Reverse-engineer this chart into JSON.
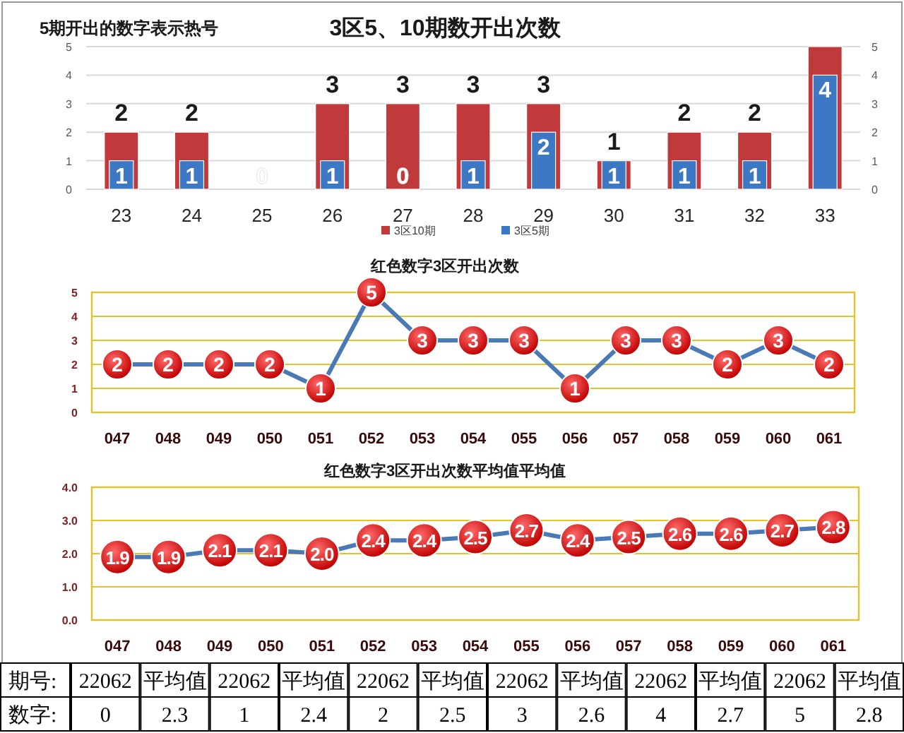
{
  "chart_data": [
    {
      "type": "bar",
      "title": "3区5、10期数开出次数",
      "annotations": [
        "5期开出的数字表示热号"
      ],
      "categories": [
        "23",
        "24",
        "25",
        "26",
        "27",
        "28",
        "29",
        "30",
        "31",
        "32",
        "33"
      ],
      "series": [
        {
          "name": "3区10期",
          "color": "#c0393b",
          "values": [
            2,
            2,
            0,
            3,
            3,
            3,
            3,
            1,
            2,
            2,
            5
          ],
          "value_labels": [
            "2",
            "2",
            null,
            "3",
            "3",
            "3",
            "3",
            "1",
            "2",
            "2",
            null
          ]
        },
        {
          "name": "3区5期",
          "color": "#3c78c3",
          "values": [
            1,
            1,
            0,
            1,
            0,
            1,
            2,
            1,
            1,
            1,
            4
          ],
          "value_labels": [
            "1",
            "1",
            "0",
            "1",
            "0",
            "1",
            "2",
            "1",
            "1",
            "1",
            "4"
          ]
        }
      ],
      "ylim": [
        0,
        5
      ],
      "yticks": [
        0,
        1,
        2,
        3,
        4,
        5
      ],
      "y2lim": [
        0,
        5
      ],
      "y2ticks": [
        0,
        1,
        2,
        3,
        4,
        5
      ],
      "grid": "y",
      "legend": "bottom"
    },
    {
      "type": "line",
      "title": "红色数字3区开出次数",
      "categories": [
        "047",
        "048",
        "049",
        "050",
        "051",
        "052",
        "053",
        "054",
        "055",
        "056",
        "057",
        "058",
        "059",
        "060",
        "061"
      ],
      "series": [
        {
          "color": "#4a7ab5",
          "values": [
            2,
            2,
            2,
            2,
            1,
            5,
            3,
            3,
            3,
            1,
            3,
            3,
            2,
            3,
            2
          ]
        }
      ],
      "ylim": [
        0,
        5
      ],
      "yticks": [
        0,
        1,
        2,
        3,
        4,
        5
      ],
      "grid": "y",
      "marker": "circle",
      "data_labels": true
    },
    {
      "type": "line",
      "title": "红色数字3区开出次数平均值平均值",
      "categories": [
        "047",
        "048",
        "049",
        "050",
        "051",
        "052",
        "053",
        "054",
        "055",
        "056",
        "057",
        "058",
        "059",
        "060",
        "061"
      ],
      "series": [
        {
          "color": "#4a7ab5",
          "values": [
            1.9,
            1.9,
            2.1,
            2.1,
            2.0,
            2.4,
            2.4,
            2.5,
            2.7,
            2.4,
            2.5,
            2.6,
            2.6,
            2.7,
            2.8
          ],
          "value_labels": [
            "1.9",
            "1.9",
            "2.1",
            "2.1",
            "2.0",
            "2.4",
            "2.4",
            "2.5",
            "2.7",
            "2.4",
            "2.5",
            "2.6",
            "2.6",
            "2.7",
            "2.8"
          ]
        }
      ],
      "ylim": [
        0,
        4
      ],
      "yticks": [
        {
          "value": 0,
          "label": "0.0"
        },
        {
          "value": 1,
          "label": "1.0"
        },
        {
          "value": 2,
          "label": "2.0"
        },
        {
          "value": 3,
          "label": "3.0"
        },
        {
          "value": 4,
          "label": "4.0"
        }
      ],
      "grid": "y",
      "marker": "circle"
    },
    {
      "type": "other",
      "annotations": [
        "期号:",
        "22062",
        "平均值",
        "22062",
        "平均值",
        "22062",
        "平均值",
        "22062",
        "平均值",
        "22062",
        "平均值",
        "22062",
        "平均值",
        "数字:",
        "0",
        "2.3",
        "1",
        "2.4",
        "2",
        "2.5",
        "3",
        "2.6",
        "4",
        "2.7",
        "5",
        "2.8"
      ]
    }
  ]
}
